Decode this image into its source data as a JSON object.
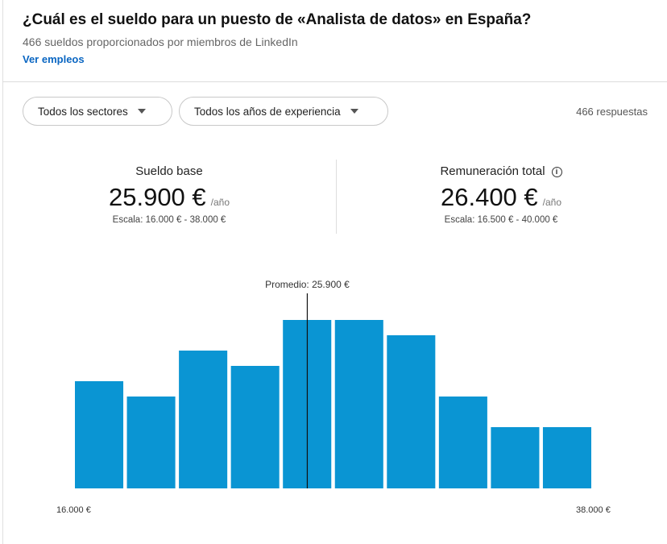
{
  "header": {
    "title": "¿Cuál es el sueldo para un puesto de «Analista de datos» en España?",
    "subtitle": "466 sueldos proporcionados por miembros de LinkedIn",
    "link": "Ver empleos"
  },
  "filters": {
    "sector": "Todos los sectores",
    "experience": "Todos los años de experiencia",
    "responses": "466 respuestas"
  },
  "stats": {
    "base": {
      "label": "Sueldo base",
      "value": "25.900 €",
      "unit": "/año",
      "range": "Escala: 16.000 € - 38.000 €"
    },
    "total": {
      "label": "Remuneración total",
      "value": "26.400 €",
      "unit": "/año",
      "range": "Escala: 16.500 € - 40.000 €",
      "icon": "info-icon"
    }
  },
  "chart_data": {
    "type": "bar",
    "title": "",
    "xlabel": "",
    "ylabel": "",
    "x_range": [
      16000,
      38000
    ],
    "tick_labels": [
      "16.000 €",
      "38.000 €"
    ],
    "values": [
      7,
      6,
      9,
      8,
      11,
      11,
      10,
      6,
      4,
      4
    ],
    "ylim": [
      0,
      11
    ],
    "mean": 25900,
    "mean_label": "Promedio: 25.900 €",
    "grid": false,
    "bar_color": "#0a95d3"
  }
}
